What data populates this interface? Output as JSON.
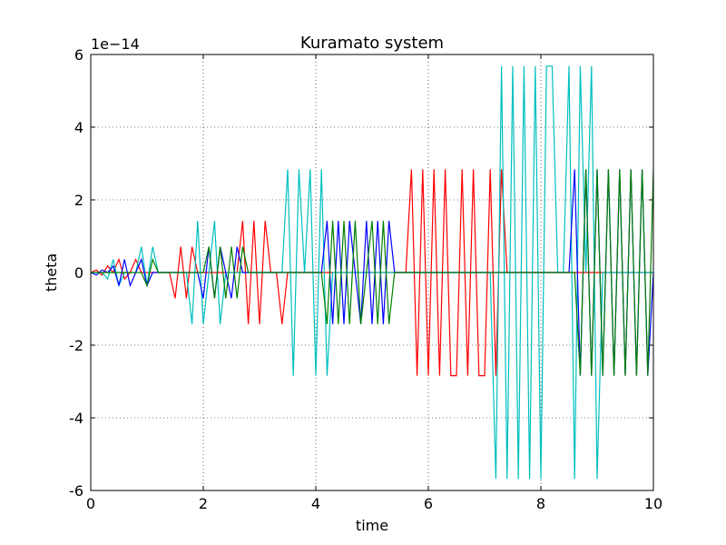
{
  "chart_data": {
    "type": "line",
    "title": "Kuramato system",
    "xlabel": "time",
    "ylabel": "theta",
    "offset_label": "1e−14",
    "x": [
      0,
      0.1,
      0.2,
      0.3,
      0.4,
      0.5,
      0.6,
      0.7,
      0.8,
      0.9,
      1,
      1.1,
      1.2,
      1.3,
      1.4,
      1.5,
      1.6,
      1.7,
      1.8,
      1.9,
      2,
      2.1,
      2.2,
      2.3,
      2.4,
      2.5,
      2.6,
      2.7,
      2.8,
      2.9,
      3,
      3.1,
      3.2,
      3.3,
      3.4,
      3.5,
      3.6,
      3.7,
      3.8,
      3.9,
      4,
      4.1,
      4.2,
      4.3,
      4.4,
      4.5,
      4.6,
      4.7,
      4.8,
      4.9,
      5,
      5.1,
      5.2,
      5.3,
      5.4,
      5.5,
      5.6,
      5.7,
      5.8,
      5.9,
      6,
      6.1,
      6.2,
      6.3,
      6.4,
      6.5,
      6.6,
      6.7,
      6.8,
      6.9,
      7,
      7.1,
      7.2,
      7.3,
      7.4,
      7.5,
      7.6,
      7.7,
      7.8,
      7.9,
      8,
      8.1,
      8.2,
      8.3,
      8.4,
      8.5,
      8.6,
      8.7,
      8.8,
      8.9,
      9,
      9.1,
      9.2,
      9.3,
      9.4,
      9.5,
      9.6,
      9.7,
      9.8,
      9.9,
      10
    ],
    "series": [
      {
        "color": "#ff0000",
        "values": [
          0,
          0.07,
          -0.07,
          0.18,
          0,
          0.36,
          -0.18,
          0,
          0.36,
          0,
          0,
          0,
          0,
          0,
          0,
          -0.71,
          0.71,
          -0.71,
          0.71,
          0,
          0,
          0,
          0,
          0,
          0,
          0,
          0,
          1.42,
          -1.42,
          1.42,
          -1.42,
          1.42,
          0,
          0,
          -1.42,
          0,
          0,
          0,
          0,
          0,
          0,
          0,
          0,
          0,
          0,
          0,
          0,
          0,
          0,
          0,
          0,
          0,
          0,
          0,
          0,
          0,
          0,
          2.84,
          -2.84,
          2.84,
          -2.84,
          2.84,
          -2.84,
          2.84,
          -2.84,
          -2.84,
          2.84,
          -2.84,
          2.84,
          -2.84,
          -2.84,
          2.84,
          -2.84,
          2.84,
          0,
          0,
          0,
          0,
          0,
          0,
          0,
          0,
          0,
          0,
          0,
          0,
          0,
          0,
          0,
          0,
          0,
          0,
          0,
          0,
          0,
          0,
          0,
          0,
          0,
          0,
          0
        ]
      },
      {
        "color": "#00bfbf",
        "values": [
          0,
          0,
          0,
          -0.18,
          0.36,
          -0.36,
          0,
          0,
          0,
          0.71,
          -0.36,
          0.71,
          0,
          0,
          0,
          0,
          0,
          0,
          -1.42,
          1.42,
          -1.42,
          0,
          1.42,
          -1.42,
          0,
          0,
          0,
          0,
          0,
          0,
          0,
          0,
          0,
          0,
          0,
          2.84,
          -2.84,
          2.84,
          0,
          2.84,
          -2.84,
          2.84,
          -2.84,
          0,
          0,
          0,
          0,
          0,
          0,
          0,
          0,
          0,
          0,
          0,
          0,
          0,
          0,
          0,
          0,
          0,
          0,
          0,
          0,
          0,
          0,
          0,
          0,
          0,
          0,
          0,
          0,
          0,
          -5.68,
          5.68,
          -5.68,
          5.68,
          -5.68,
          5.68,
          -5.68,
          5.68,
          -5.68,
          5.68,
          5.68,
          0,
          0,
          5.68,
          -5.68,
          5.68,
          0,
          5.68,
          -5.68,
          0,
          0,
          0,
          0,
          0,
          0,
          0,
          0,
          0,
          0
        ]
      },
      {
        "color": "#0000ff",
        "values": [
          0,
          -0.07,
          0.07,
          0,
          0.18,
          -0.36,
          0.36,
          -0.36,
          0,
          0.36,
          -0.36,
          0,
          0,
          0,
          0,
          0,
          0,
          0,
          0,
          0,
          -0.71,
          0.71,
          -0.71,
          0.71,
          0,
          -0.71,
          0.71,
          0,
          0,
          0,
          0,
          0,
          0,
          0,
          0,
          0,
          0,
          0,
          0,
          0,
          0,
          0,
          1.42,
          -1.42,
          1.42,
          -1.42,
          1.42,
          0,
          -1.42,
          1.42,
          -1.42,
          1.42,
          -1.42,
          1.42,
          0,
          0,
          0,
          0,
          0,
          0,
          0,
          0,
          0,
          0,
          0,
          0,
          0,
          0,
          0,
          0,
          0,
          0,
          0,
          0,
          0,
          0,
          0,
          0,
          0,
          0,
          0,
          0,
          0,
          0,
          0,
          0,
          2.84,
          -2.84,
          2.84,
          -2.84,
          2.84,
          -2.84,
          2.84,
          -2.84,
          2.84,
          -2.84,
          2.84,
          -2.84,
          2.84,
          -2.84,
          0
        ]
      },
      {
        "color": "#008000",
        "values": [
          0,
          0,
          0,
          0,
          0,
          0,
          0,
          0,
          0,
          0,
          -0.36,
          0.36,
          0,
          0,
          0,
          0,
          0,
          0,
          0,
          0,
          0,
          0.71,
          -0.71,
          0.71,
          -0.71,
          0.71,
          -0.71,
          0.71,
          0,
          0,
          0,
          0,
          0,
          0,
          0,
          0,
          0,
          0,
          0,
          0,
          0,
          0,
          -1.42,
          1.42,
          -1.42,
          1.42,
          -1.42,
          1.42,
          -1.42,
          0,
          1.42,
          -1.42,
          1.42,
          -1.42,
          0,
          0,
          0,
          0,
          0,
          0,
          0,
          0,
          0,
          0,
          0,
          0,
          0,
          0,
          0,
          0,
          0,
          0,
          0,
          0,
          0,
          0,
          0,
          0,
          0,
          0,
          0,
          0,
          0,
          0,
          0,
          0,
          0,
          -2.84,
          2.84,
          -2.84,
          2.84,
          -2.84,
          2.84,
          -2.84,
          2.84,
          -2.84,
          2.84,
          -2.84,
          2.84,
          -2.84,
          2.84
        ]
      }
    ],
    "xlim": [
      0,
      10
    ],
    "xticks": [
      0,
      2,
      4,
      6,
      8,
      10
    ],
    "ylim": [
      -6,
      6
    ],
    "yticks": [
      -6,
      -4,
      -2,
      0,
      2,
      4,
      6
    ],
    "grid": true
  }
}
